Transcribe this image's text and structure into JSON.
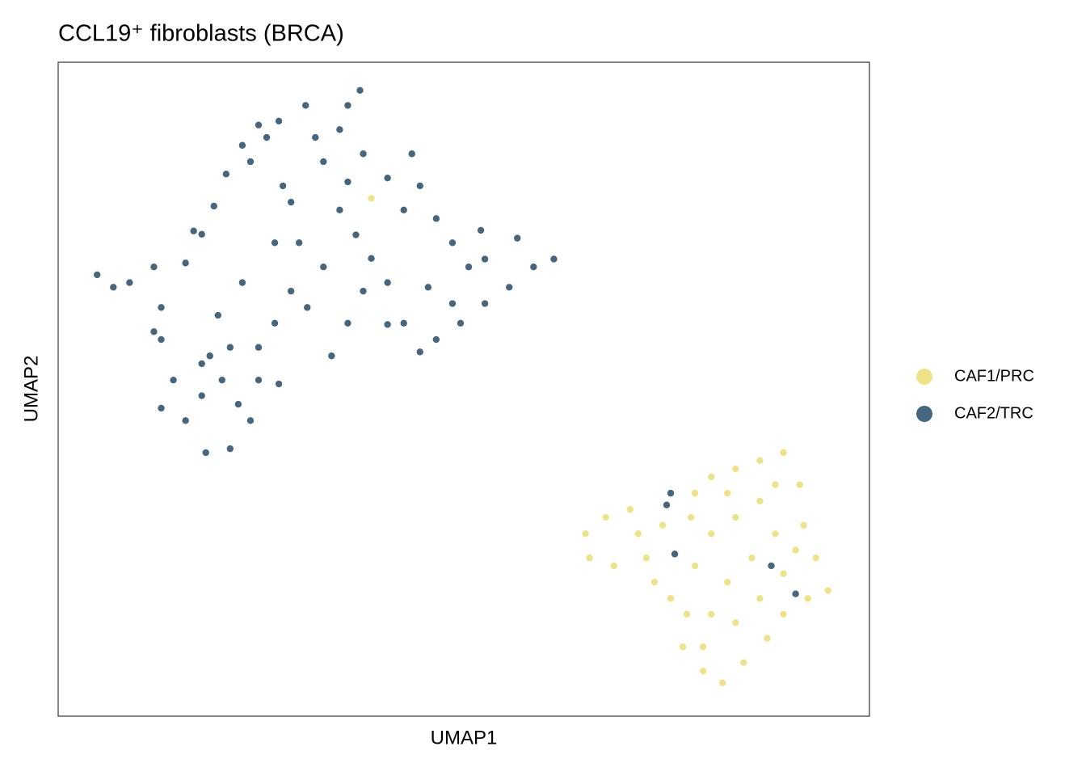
{
  "chart_data": {
    "type": "scatter",
    "title": "CCL19⁺ fibroblasts (BRCA)",
    "x_label": "UMAP1",
    "y_label": "UMAP2",
    "xlim": [
      0,
      100
    ],
    "ylim": [
      0,
      100
    ],
    "legend": "right",
    "series": [
      {
        "name": "CAF1/PRC",
        "color": "#EFE38A",
        "x": [
          38.6,
          65.0,
          65.5,
          67.5,
          70.5,
          71.5,
          68.5,
          72.5,
          73.5,
          75.5,
          77.5,
          77.0,
          79.5,
          81.9,
          84.5,
          87.4,
          89.4,
          92.4,
          94.9,
          93.4,
          91.9,
          91.4,
          89.4,
          86.5,
          83.5,
          80.5,
          78.5,
          78.0,
          80.5,
          83.5,
          86.5,
          88.4,
          85.5,
          82.5,
          80.5,
          83.5,
          86.5,
          89.4,
          78.5,
          74.5,
          82.5,
          88.4,
          90.9,
          79.5
        ],
        "y": [
          79.2,
          27.9,
          24.2,
          30.4,
          31.6,
          27.9,
          23.0,
          24.2,
          20.5,
          18.0,
          15.6,
          10.6,
          6.9,
          5.1,
          8.2,
          11.9,
          15.6,
          18.0,
          19.2,
          24.2,
          29.2,
          35.4,
          40.3,
          39.1,
          37.8,
          36.6,
          34.1,
          30.4,
          27.9,
          30.4,
          32.9,
          27.9,
          24.2,
          20.5,
          15.6,
          14.3,
          18.0,
          21.8,
          23.0,
          29.2,
          34.1,
          35.4,
          25.4,
          10.6
        ]
      },
      {
        "name": "CAF2/TRC",
        "color": "#46667F",
        "x": [
          37.2,
          35.7,
          30.5,
          24.7,
          27.2,
          22.7,
          20.7,
          19.2,
          17.7,
          15.7,
          4.8,
          6.8,
          8.8,
          11.8,
          12.7,
          11.8,
          14.2,
          12.7,
          15.7,
          18.2,
          21.2,
          23.7,
          24.7,
          18.7,
          20.2,
          17.7,
          22.2,
          19.7,
          22.7,
          26.7,
          28.7,
          32.7,
          34.7,
          37.6,
          40.6,
          43.6,
          44.6,
          46.6,
          48.6,
          50.6,
          52.1,
          52.6,
          49.6,
          46.6,
          44.6,
          42.6,
          40.6,
          38.6,
          36.7,
          34.7,
          32.7,
          30.7,
          28.7,
          26.7,
          24.7,
          33.7,
          35.7,
          37.6,
          56.6,
          58.6,
          61.1,
          55.6,
          52.6,
          27.2,
          29.7,
          23.7,
          16.7,
          12.7,
          35.7,
          42.6,
          25.7,
          31.7,
          17.7,
          21.2,
          27.7,
          45.6,
          48.6,
          40.6,
          75.5,
          75.0,
          76.0,
          87.9,
          90.9
        ],
        "y": [
          95.7,
          93.4,
          93.4,
          90.4,
          91.0,
          87.3,
          82.9,
          78.0,
          73.7,
          69.3,
          67.5,
          65.6,
          66.3,
          68.7,
          57.6,
          58.8,
          51.4,
          47.1,
          45.2,
          40.3,
          40.9,
          45.2,
          51.4,
          55.1,
          51.4,
          49.0,
          47.7,
          61.3,
          66.3,
          72.4,
          78.6,
          84.8,
          89.7,
          86.0,
          82.3,
          86.0,
          81.1,
          76.1,
          72.4,
          68.7,
          74.3,
          69.9,
          60.1,
          57.6,
          55.7,
          60.1,
          66.3,
          70.0,
          73.6,
          77.4,
          68.7,
          62.5,
          65.0,
          60.1,
          56.4,
          55.1,
          60.1,
          65.0,
          73.1,
          68.7,
          69.9,
          65.6,
          63.1,
          50.8,
          72.4,
          84.8,
          74.2,
          62.5,
          81.7,
          77.4,
          88.5,
          88.5,
          53.9,
          56.4,
          81.1,
          65.6,
          63.1,
          59.9,
          34.1,
          32.3,
          24.8,
          23.0,
          18.7
        ]
      }
    ]
  }
}
